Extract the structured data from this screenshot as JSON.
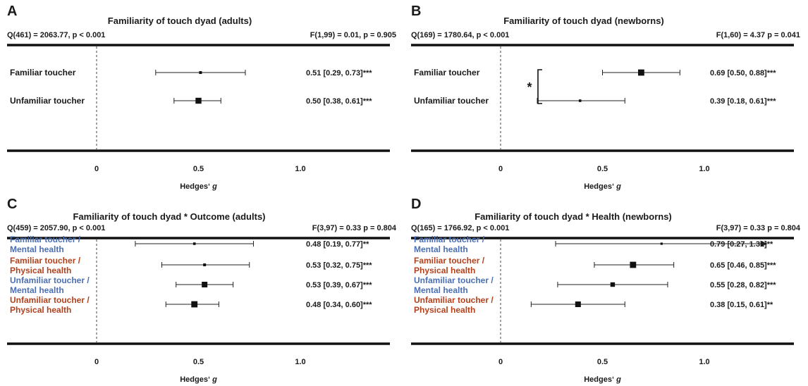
{
  "axis": {
    "xlabel_prefix": "Hedges‘ ",
    "xlabel_italic": "g",
    "xlim": [
      -0.45,
      1.45
    ],
    "ticks": [
      "0",
      "0.5",
      "1.0"
    ],
    "reference_line": 0
  },
  "colors": {
    "text": "#1a1a1a",
    "mental_health": "#4b6fb5",
    "physical_health": "#b3411c"
  },
  "chart_data": [
    {
      "type": "forest",
      "panel": "A",
      "title": "Familiarity of touch dyad (adults)",
      "q_stat": "Q(461) = 2063.77, p < 0.001",
      "f_stat": "F(1,99) = 0.01, p = 0.905",
      "rows": [
        {
          "label": [
            "Familiar toucher"
          ],
          "color_key": "text",
          "est": 0.51,
          "lo": 0.29,
          "hi": 0.73,
          "weight": 0.25,
          "text": "0.51 [0.29, 0.73]***"
        },
        {
          "label": [
            "Unfamiliar toucher"
          ],
          "color_key": "text",
          "est": 0.5,
          "lo": 0.38,
          "hi": 0.61,
          "weight": 0.8,
          "text": "0.50 [0.38, 0.61]***"
        }
      ]
    },
    {
      "type": "forest",
      "panel": "B",
      "title": "Familiarity of touch dyad (newborns)",
      "q_stat": "Q(169) = 1780.64, p < 0.001",
      "f_stat": "F(1,60) = 4.37 p = 0.041",
      "significance": {
        "symbol": "*",
        "rows": [
          0,
          1
        ]
      },
      "rows": [
        {
          "label": [
            "Familiar toucher"
          ],
          "color_key": "text",
          "est": 0.69,
          "lo": 0.5,
          "hi": 0.88,
          "weight": 0.85,
          "text": "0.69 [0.50, 0.88]***"
        },
        {
          "label": [
            "Unfamiliar toucher"
          ],
          "color_key": "text",
          "est": 0.39,
          "lo": 0.18,
          "hi": 0.61,
          "weight": 0.2,
          "text": "0.39 [0.18, 0.61]***"
        }
      ]
    },
    {
      "type": "forest",
      "panel": "C",
      "title": "Familiarity of touch dyad * Outcome (adults)",
      "q_stat": "Q(459) = 2057.90, p < 0.001",
      "f_stat": "F(3,97) = 0.33 p = 0.804",
      "rows": [
        {
          "label": [
            "Familiar toucher /",
            "Mental health"
          ],
          "color_key": "mental_health",
          "est": 0.48,
          "lo": 0.19,
          "hi": 0.77,
          "weight": 0.2,
          "text": "0.48 [0.19, 0.77]**"
        },
        {
          "label": [
            "Familiar toucher /",
            "Physical health"
          ],
          "color_key": "physical_health",
          "est": 0.53,
          "lo": 0.32,
          "hi": 0.75,
          "weight": 0.25,
          "text": "0.53 [0.32, 0.75]***"
        },
        {
          "label": [
            "Unfamiliar toucher /",
            "Mental health"
          ],
          "color_key": "mental_health",
          "est": 0.53,
          "lo": 0.39,
          "hi": 0.67,
          "weight": 0.75,
          "text": "0.53 [0.39, 0.67]***"
        },
        {
          "label": [
            "Unfamiliar toucher /",
            "Physical health"
          ],
          "color_key": "physical_health",
          "est": 0.48,
          "lo": 0.34,
          "hi": 0.6,
          "weight": 0.85,
          "text": "0.48 [0.34, 0.60]***"
        }
      ]
    },
    {
      "type": "forest",
      "panel": "D",
      "title": "Familiarity of touch dyad * Health (newborns)",
      "q_stat": "Q(165) = 1766.92, p < 0.001",
      "f_stat": "F(3,97) = 0.33 p = 0.804",
      "rows": [
        {
          "label": [
            "Familiar toucher /",
            "Mental health"
          ],
          "color_key": "mental_health",
          "est": 0.79,
          "lo": 0.27,
          "hi": 1.31,
          "weight": 0.15,
          "arrow_right": true,
          "text": "0.79 [0.27, 1.31]**"
        },
        {
          "label": [
            "Familiar toucher /",
            "Physical health"
          ],
          "color_key": "physical_health",
          "est": 0.65,
          "lo": 0.46,
          "hi": 0.85,
          "weight": 0.85,
          "text": "0.65 [0.46, 0.85]***"
        },
        {
          "label": [
            "Unfamiliar toucher /",
            "Mental health"
          ],
          "color_key": "mental_health",
          "est": 0.55,
          "lo": 0.28,
          "hi": 0.82,
          "weight": 0.55,
          "text": "0.55 [0.28, 0.82]***"
        },
        {
          "label": [
            "Unfamiliar toucher /",
            "Physical health"
          ],
          "color_key": "physical_health",
          "est": 0.38,
          "lo": 0.15,
          "hi": 0.61,
          "weight": 0.75,
          "text": "0.38 [0.15, 0.61]**"
        }
      ]
    }
  ]
}
